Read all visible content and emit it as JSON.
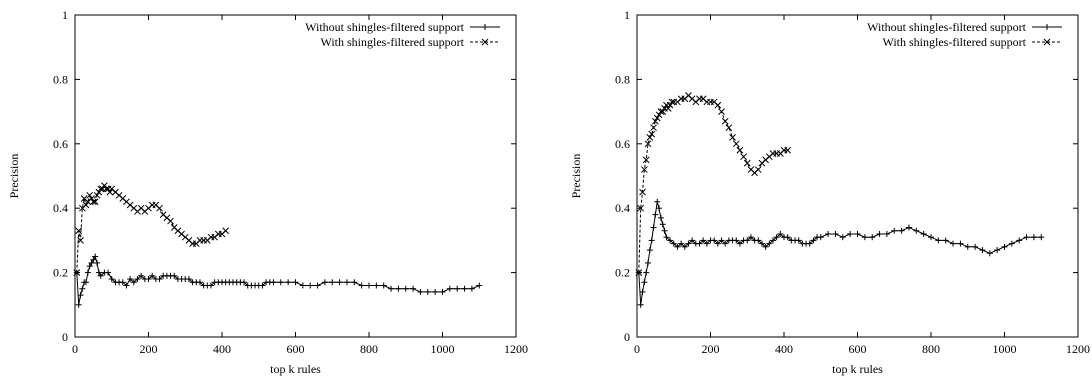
{
  "chart_data": [
    {
      "type": "line",
      "title": "",
      "xlabel": "top k rules",
      "ylabel": "Precision",
      "xlim": [
        0,
        1200
      ],
      "ylim": [
        0,
        1
      ],
      "xticks": [
        0,
        200,
        400,
        600,
        800,
        1000,
        1200
      ],
      "yticks": [
        0,
        0.2,
        0.4,
        0.6,
        0.8,
        1
      ],
      "xtick_labels": [
        "0",
        "200",
        "400",
        "600",
        "800",
        "1000",
        "1200"
      ],
      "ytick_labels": [
        "0",
        "0.2",
        "0.4",
        "0.6",
        "0.8",
        "1"
      ],
      "grid": false,
      "legend_position": "top-right",
      "series": [
        {
          "name": "Without shingles-filtered support",
          "line_style": "solid",
          "marker": "plus",
          "x": [
            5,
            10,
            15,
            20,
            25,
            30,
            35,
            40,
            45,
            50,
            55,
            60,
            65,
            70,
            80,
            90,
            100,
            110,
            120,
            130,
            140,
            150,
            160,
            170,
            180,
            190,
            200,
            210,
            220,
            230,
            240,
            250,
            260,
            270,
            280,
            290,
            300,
            310,
            320,
            330,
            340,
            350,
            360,
            370,
            380,
            390,
            400,
            410,
            420,
            430,
            440,
            450,
            460,
            470,
            480,
            490,
            500,
            510,
            520,
            530,
            540,
            560,
            580,
            600,
            620,
            640,
            660,
            680,
            700,
            720,
            740,
            760,
            780,
            800,
            820,
            840,
            860,
            880,
            900,
            920,
            940,
            960,
            980,
            1000,
            1020,
            1040,
            1060,
            1080,
            1100
          ],
          "y": [
            0.2,
            0.1,
            0.13,
            0.15,
            0.17,
            0.17,
            0.2,
            0.22,
            0.23,
            0.24,
            0.25,
            0.23,
            0.2,
            0.19,
            0.2,
            0.2,
            0.18,
            0.17,
            0.17,
            0.17,
            0.16,
            0.18,
            0.17,
            0.18,
            0.19,
            0.18,
            0.18,
            0.19,
            0.18,
            0.18,
            0.19,
            0.19,
            0.19,
            0.19,
            0.18,
            0.18,
            0.18,
            0.18,
            0.17,
            0.17,
            0.17,
            0.16,
            0.16,
            0.16,
            0.17,
            0.17,
            0.17,
            0.17,
            0.17,
            0.17,
            0.17,
            0.17,
            0.17,
            0.16,
            0.16,
            0.16,
            0.16,
            0.16,
            0.17,
            0.17,
            0.17,
            0.17,
            0.17,
            0.17,
            0.16,
            0.16,
            0.16,
            0.17,
            0.17,
            0.17,
            0.17,
            0.17,
            0.16,
            0.16,
            0.16,
            0.16,
            0.15,
            0.15,
            0.15,
            0.15,
            0.14,
            0.14,
            0.14,
            0.14,
            0.15,
            0.15,
            0.15,
            0.15,
            0.16
          ]
        },
        {
          "name": "With shingles-filtered support",
          "line_style": "dashed",
          "marker": "cross",
          "x": [
            5,
            10,
            15,
            20,
            25,
            30,
            35,
            40,
            45,
            50,
            55,
            60,
            65,
            70,
            75,
            80,
            85,
            90,
            95,
            100,
            110,
            120,
            130,
            140,
            150,
            160,
            170,
            180,
            190,
            200,
            210,
            220,
            230,
            240,
            250,
            260,
            270,
            280,
            290,
            300,
            310,
            320,
            330,
            340,
            350,
            360,
            370,
            380,
            390,
            400,
            410
          ],
          "y": [
            0.2,
            0.33,
            0.3,
            0.4,
            0.43,
            0.41,
            0.42,
            0.44,
            0.43,
            0.42,
            0.42,
            0.44,
            0.45,
            0.46,
            0.46,
            0.47,
            0.46,
            0.46,
            0.45,
            0.46,
            0.45,
            0.44,
            0.43,
            0.42,
            0.41,
            0.4,
            0.39,
            0.4,
            0.39,
            0.4,
            0.41,
            0.41,
            0.4,
            0.38,
            0.37,
            0.36,
            0.34,
            0.33,
            0.32,
            0.31,
            0.3,
            0.29,
            0.29,
            0.3,
            0.3,
            0.3,
            0.31,
            0.31,
            0.32,
            0.32,
            0.33
          ]
        }
      ]
    },
    {
      "type": "line",
      "title": "",
      "xlabel": "top k rules",
      "ylabel": "Precision",
      "xlim": [
        0,
        1200
      ],
      "ylim": [
        0,
        1
      ],
      "xticks": [
        0,
        200,
        400,
        600,
        800,
        1000,
        1200
      ],
      "yticks": [
        0,
        0.2,
        0.4,
        0.6,
        0.8,
        1
      ],
      "xtick_labels": [
        "0",
        "200",
        "400",
        "600",
        "800",
        "1000",
        "1200"
      ],
      "ytick_labels": [
        "0",
        "0.2",
        "0.4",
        "0.6",
        "0.8",
        "1"
      ],
      "grid": false,
      "legend_position": "top-right",
      "series": [
        {
          "name": "Without shingles-filtered support",
          "line_style": "solid",
          "marker": "plus",
          "x": [
            5,
            10,
            15,
            20,
            25,
            30,
            35,
            40,
            45,
            50,
            55,
            60,
            65,
            70,
            75,
            80,
            90,
            100,
            110,
            120,
            130,
            140,
            150,
            160,
            170,
            180,
            190,
            200,
            210,
            220,
            230,
            240,
            250,
            260,
            270,
            280,
            290,
            300,
            310,
            320,
            330,
            340,
            350,
            360,
            370,
            380,
            390,
            400,
            410,
            420,
            430,
            440,
            450,
            460,
            470,
            480,
            490,
            500,
            520,
            540,
            560,
            580,
            600,
            620,
            640,
            660,
            680,
            700,
            720,
            740,
            760,
            780,
            800,
            820,
            840,
            860,
            880,
            900,
            920,
            940,
            960,
            980,
            1000,
            1020,
            1040,
            1060,
            1080,
            1100
          ],
          "y": [
            0.2,
            0.1,
            0.14,
            0.17,
            0.2,
            0.23,
            0.27,
            0.3,
            0.34,
            0.38,
            0.42,
            0.4,
            0.37,
            0.35,
            0.33,
            0.31,
            0.3,
            0.29,
            0.28,
            0.29,
            0.28,
            0.29,
            0.3,
            0.29,
            0.29,
            0.3,
            0.29,
            0.3,
            0.3,
            0.29,
            0.3,
            0.29,
            0.3,
            0.3,
            0.3,
            0.29,
            0.3,
            0.3,
            0.31,
            0.3,
            0.3,
            0.29,
            0.28,
            0.29,
            0.3,
            0.31,
            0.32,
            0.31,
            0.31,
            0.3,
            0.3,
            0.3,
            0.29,
            0.29,
            0.29,
            0.3,
            0.31,
            0.31,
            0.32,
            0.32,
            0.31,
            0.32,
            0.32,
            0.31,
            0.31,
            0.32,
            0.32,
            0.33,
            0.33,
            0.34,
            0.33,
            0.32,
            0.31,
            0.3,
            0.3,
            0.29,
            0.29,
            0.28,
            0.28,
            0.27,
            0.26,
            0.27,
            0.28,
            0.29,
            0.3,
            0.31,
            0.31,
            0.31
          ]
        },
        {
          "name": "With shingles-filtered support",
          "line_style": "dashed",
          "marker": "cross",
          "x": [
            5,
            10,
            15,
            20,
            25,
            30,
            35,
            40,
            45,
            50,
            55,
            60,
            65,
            70,
            75,
            80,
            85,
            90,
            95,
            100,
            110,
            120,
            130,
            140,
            150,
            160,
            170,
            180,
            190,
            200,
            210,
            220,
            230,
            240,
            250,
            260,
            270,
            280,
            290,
            300,
            310,
            320,
            330,
            340,
            350,
            360,
            370,
            380,
            390,
            400,
            410
          ],
          "y": [
            0.2,
            0.4,
            0.45,
            0.52,
            0.55,
            0.6,
            0.62,
            0.63,
            0.65,
            0.67,
            0.68,
            0.69,
            0.7,
            0.7,
            0.71,
            0.72,
            0.71,
            0.72,
            0.73,
            0.73,
            0.73,
            0.74,
            0.74,
            0.75,
            0.74,
            0.73,
            0.74,
            0.74,
            0.73,
            0.73,
            0.73,
            0.72,
            0.7,
            0.67,
            0.65,
            0.62,
            0.6,
            0.58,
            0.56,
            0.54,
            0.52,
            0.51,
            0.52,
            0.54,
            0.55,
            0.56,
            0.57,
            0.57,
            0.57,
            0.58,
            0.58
          ]
        }
      ]
    }
  ]
}
